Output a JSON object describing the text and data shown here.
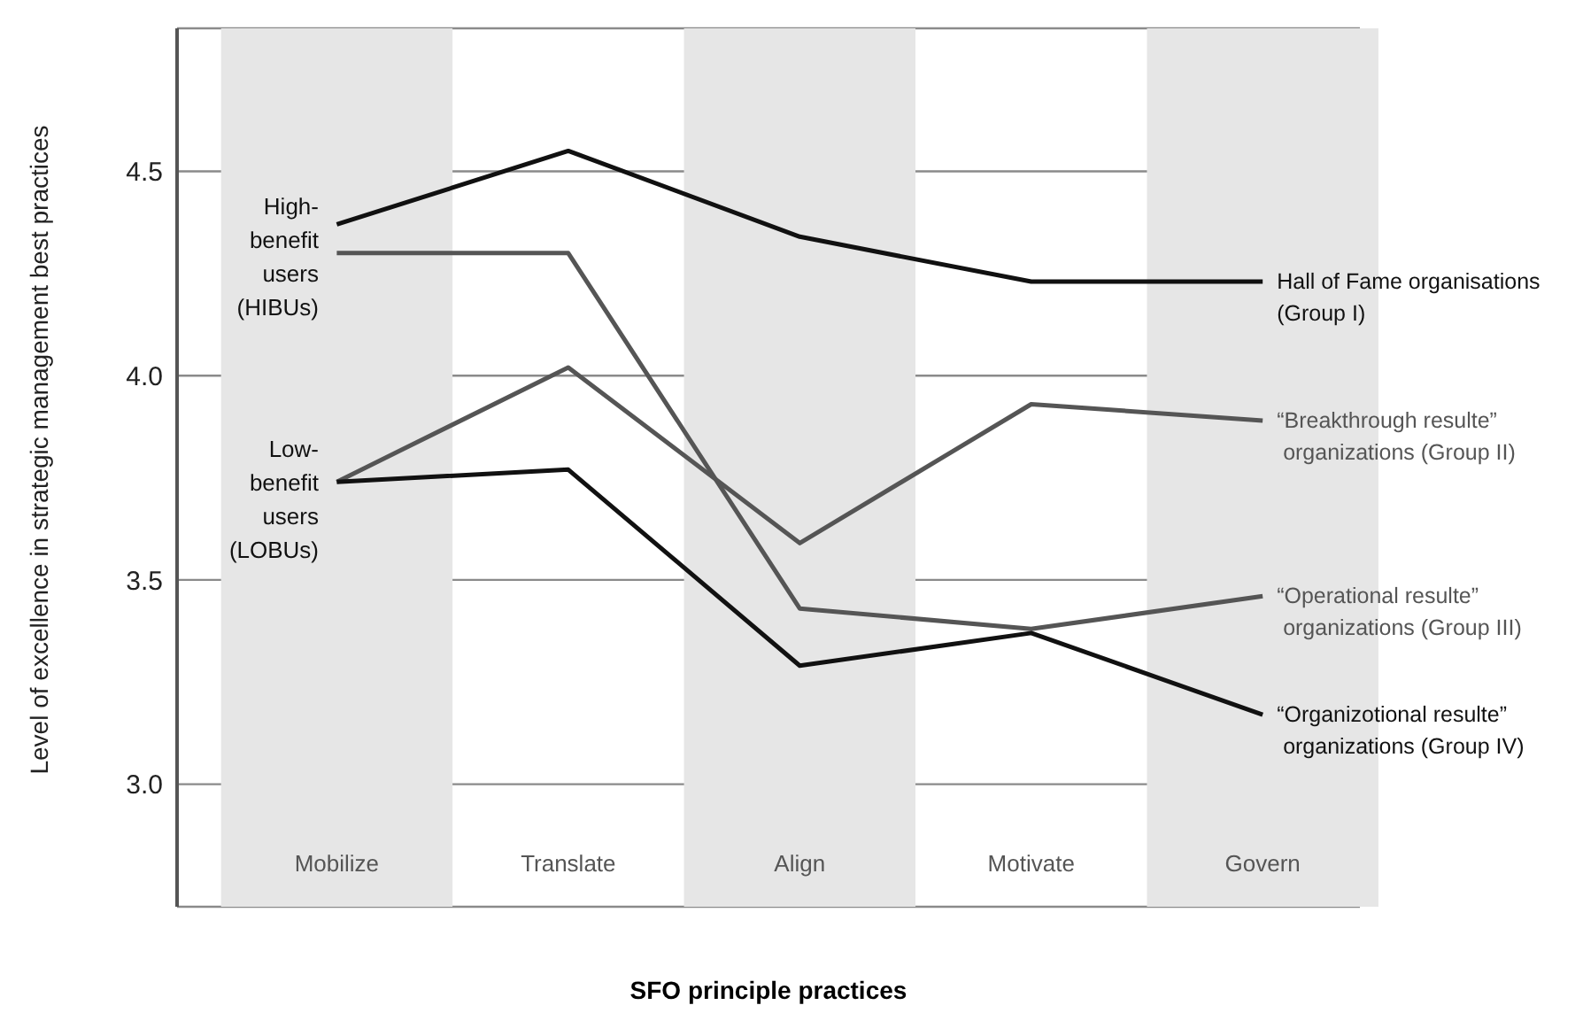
{
  "chart_data": {
    "type": "line",
    "xlabel": "SFO principle practices",
    "ylabel": "Level of excellence in strategic management best practices",
    "categories": [
      "Mobilize",
      "Translate",
      "Align",
      "Motivate",
      "Govern"
    ],
    "series": [
      {
        "name": "Hall of Fame organisations\n(Group I)",
        "color": "#111111",
        "values": [
          4.37,
          4.55,
          4.34,
          4.23,
          4.23
        ]
      },
      {
        "name": "“Breakthrough resulte”\n organizations (Group II)",
        "color": "#555555",
        "values": [
          3.74,
          4.02,
          3.59,
          3.93,
          3.89
        ]
      },
      {
        "name": "“Operational resulte”\n organizations (Group III)",
        "color": "#555555",
        "values": [
          4.3,
          4.3,
          3.43,
          3.38,
          3.46
        ]
      },
      {
        "name": "“Organizotional resulte”\n organizations (Group IV)",
        "color": "#111111",
        "values": [
          3.74,
          3.77,
          3.29,
          3.37,
          3.17
        ]
      }
    ],
    "annotations": [
      "High-\nbenefit\nusers\n(HIBUs)",
      "Low-\nbenefit\nusers\n(LOBUs)"
    ],
    "bands": [
      {
        "axis": "x",
        "from": "Mobilize",
        "to": "Mobilize",
        "color": "#e6e6e6"
      },
      {
        "axis": "x",
        "from": "Align",
        "to": "Align",
        "color": "#e6e6e6"
      },
      {
        "axis": "x",
        "from": "Govern",
        "to": "Govern",
        "color": "#e6e6e6"
      }
    ],
    "ylim": [
      2.7,
      4.85
    ],
    "yticks": [
      {
        "value": 3,
        "label": "3.0"
      },
      3.5,
      {
        "value": 4,
        "label": "4.0"
      },
      4.5
    ],
    "grid": "y",
    "legend": false,
    "marker": "none",
    "line_style": "solid"
  }
}
